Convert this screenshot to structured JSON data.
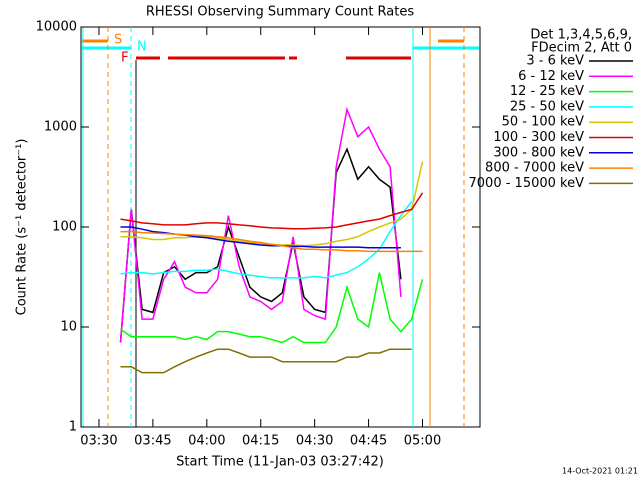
{
  "chart_data": {
    "type": "line",
    "title": "RHESSI Observing Summary Count Rates",
    "x_label": "Start Time (11-Jan-03 03:27:42)",
    "y_label": "Count Rate (s⁻¹ detector⁻¹)",
    "legend_header": [
      "Det 1,3,4,5,6,9,",
      "FDecim 2, Att 0"
    ],
    "flags": [
      "S",
      "N",
      "F"
    ],
    "footer": "14-Oct-2021 01:21",
    "log_y": true,
    "xlim": [
      205,
      316
    ],
    "xticks": [
      {
        "value": 210,
        "label": "03:30"
      },
      {
        "value": 225,
        "label": "03:45"
      },
      {
        "value": 240,
        "label": "04:00"
      },
      {
        "value": 255,
        "label": "04:15"
      },
      {
        "value": 270,
        "label": "04:30"
      },
      {
        "value": 285,
        "label": "04:45"
      },
      {
        "value": 300,
        "label": "05:00"
      }
    ],
    "ylim": [
      1,
      10000
    ],
    "yticks": [
      1,
      10,
      100,
      1000,
      10000
    ],
    "x": [
      216,
      219,
      222,
      225,
      228,
      231,
      234,
      237,
      240,
      243,
      246,
      249,
      252,
      255,
      258,
      261,
      264,
      267,
      270,
      273,
      276,
      279,
      282,
      285,
      288,
      291,
      294,
      297,
      300
    ],
    "series": [
      {
        "name": "3 - 6 keV",
        "color": "#000000",
        "values": [
          7,
          150,
          15,
          14,
          35,
          40,
          30,
          35,
          35,
          40,
          100,
          50,
          25,
          20,
          18,
          22,
          70,
          20,
          15,
          14,
          350,
          600,
          300,
          400,
          300,
          250,
          30,
          null,
          null
        ]
      },
      {
        "name": "6 - 12 keV",
        "color": "#ff00ff",
        "values": [
          7,
          150,
          12,
          12,
          30,
          45,
          25,
          22,
          22,
          30,
          130,
          40,
          20,
          18,
          15,
          18,
          80,
          15,
          13,
          12,
          400,
          1500,
          800,
          1000,
          600,
          400,
          20,
          null,
          null
        ]
      },
      {
        "name": "12 - 25 keV",
        "color": "#00ff00",
        "values": [
          9.5,
          8,
          8,
          8,
          8,
          8,
          7.5,
          8,
          7.5,
          9,
          9,
          8.5,
          8,
          8,
          7.5,
          7,
          8,
          7,
          7,
          7,
          10,
          25,
          12,
          10,
          35,
          12,
          9,
          12,
          30
        ]
      },
      {
        "name": "25 - 50 keV",
        "color": "#00ffff",
        "values": [
          34,
          35,
          35,
          34,
          35,
          36,
          36,
          37,
          37,
          38,
          36,
          34,
          33,
          32,
          31,
          31,
          31,
          31,
          32,
          31,
          33,
          35,
          40,
          48,
          60,
          90,
          130,
          180,
          null
        ]
      },
      {
        "name": "50 - 100 keV",
        "color": "#d8c400",
        "values": [
          80,
          80,
          78,
          75,
          75,
          78,
          78,
          80,
          80,
          78,
          75,
          72,
          70,
          68,
          67,
          66,
          66,
          65,
          66,
          68,
          72,
          75,
          80,
          90,
          100,
          110,
          120,
          150,
          450
        ]
      },
      {
        "name": "100 - 300 keV",
        "color": "#e00000",
        "values": [
          120,
          115,
          110,
          108,
          105,
          105,
          105,
          108,
          110,
          110,
          108,
          105,
          103,
          100,
          98,
          97,
          96,
          96,
          97,
          98,
          100,
          105,
          110,
          115,
          120,
          130,
          140,
          150,
          220
        ]
      },
      {
        "name": "300 - 800 keV",
        "color": "#0000e0",
        "values": [
          100,
          100,
          95,
          90,
          88,
          85,
          83,
          80,
          78,
          75,
          72,
          70,
          68,
          66,
          65,
          65,
          64,
          64,
          63,
          63,
          63,
          63,
          63,
          62,
          62,
          62,
          62,
          null,
          null
        ]
      },
      {
        "name": "800 - 7000 keV",
        "color": "#ff8000",
        "values": [
          90,
          90,
          88,
          87,
          86,
          85,
          84,
          83,
          82,
          80,
          78,
          75,
          72,
          70,
          67,
          65,
          62,
          60,
          60,
          59,
          59,
          58,
          58,
          57,
          57,
          57,
          57,
          57,
          57
        ]
      },
      {
        "name": "7000 - 15000 keV",
        "color": "#807000",
        "values": [
          4,
          4,
          3.5,
          3.5,
          3.5,
          4,
          4.5,
          5,
          5.5,
          6,
          6,
          5.5,
          5,
          5,
          5,
          4.5,
          4.5,
          4.5,
          4.5,
          4.5,
          4.5,
          5,
          5,
          5.5,
          5.5,
          6,
          6,
          6,
          null
        ]
      }
    ]
  }
}
